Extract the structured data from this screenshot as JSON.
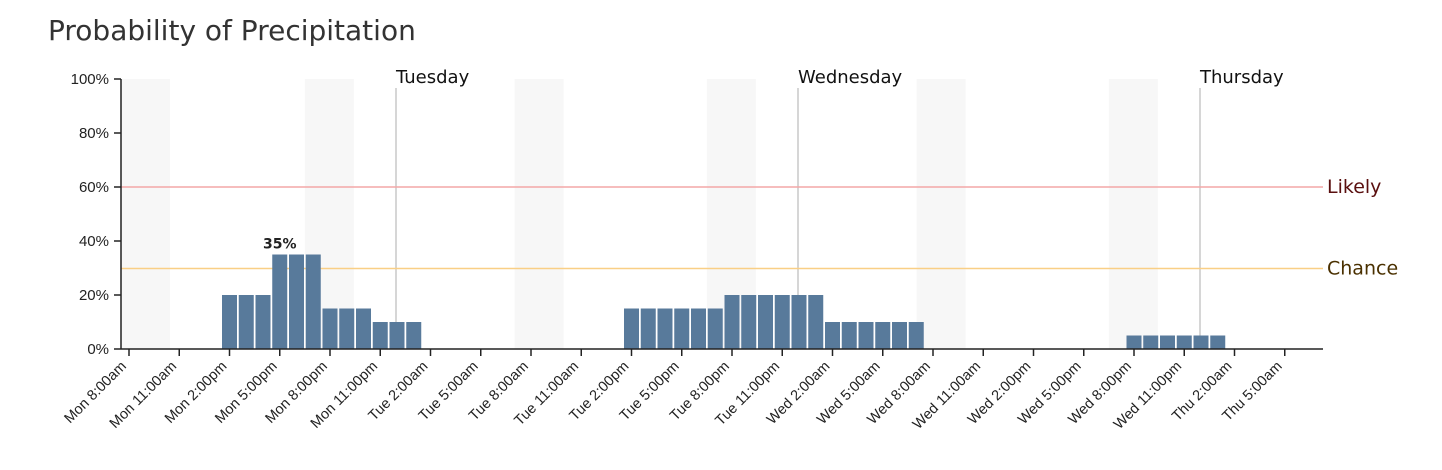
{
  "chart_data": {
    "type": "bar",
    "title": "Probability of Precipitation",
    "ylim": [
      0,
      100
    ],
    "y_ticks": [
      "0%",
      "20%",
      "40%",
      "60%",
      "80%",
      "100%"
    ],
    "x_tick_labels": [
      "Mon 8:00am",
      "Mon 11:00am",
      "Mon 2:00pm",
      "Mon 5:00pm",
      "Mon 8:00pm",
      "Mon 11:00pm",
      "Tue 2:00am",
      "Tue 5:00am",
      "Tue 8:00am",
      "Tue 11:00am",
      "Tue 2:00pm",
      "Tue 5:00pm",
      "Tue 8:00pm",
      "Tue 11:00pm",
      "Wed 2:00am",
      "Wed 5:00am",
      "Wed 8:00am",
      "Wed 11:00am",
      "Wed 2:00pm",
      "Wed 5:00pm",
      "Wed 8:00pm",
      "Wed 11:00pm",
      "Thu 2:00am",
      "Thu 5:00am"
    ],
    "hour_start": "Mon 8:00am",
    "hourly_values": [
      0,
      0,
      0,
      0,
      0,
      0,
      20,
      20,
      20,
      35,
      35,
      35,
      15,
      15,
      15,
      10,
      10,
      10,
      0,
      0,
      0,
      0,
      0,
      0,
      0,
      0,
      0,
      0,
      0,
      0,
      15,
      15,
      15,
      15,
      15,
      15,
      20,
      20,
      20,
      20,
      20,
      20,
      10,
      10,
      10,
      10,
      10,
      10,
      0,
      0,
      0,
      0,
      0,
      0,
      0,
      0,
      0,
      0,
      0,
      0,
      5,
      5,
      5,
      5,
      5,
      5,
      0,
      0,
      0,
      0,
      0,
      0
    ],
    "day_labels": [
      {
        "label": "Tuesday",
        "hour": "Tue 12:00am"
      },
      {
        "label": "Wednesday",
        "hour": "Wed 12:00am"
      },
      {
        "label": "Thursday",
        "hour": "Thu 12:00am"
      }
    ],
    "thresholds": [
      {
        "label": "Likely",
        "value": 60,
        "color": "#f4a7a7",
        "text_color": "#5a0f0f"
      },
      {
        "label": "Chance",
        "value": 30,
        "color": "#f9cf86",
        "text_color": "#4a3000"
      }
    ],
    "peak_label": "35%",
    "bar_color": "#587a9b",
    "night_shading": true
  }
}
